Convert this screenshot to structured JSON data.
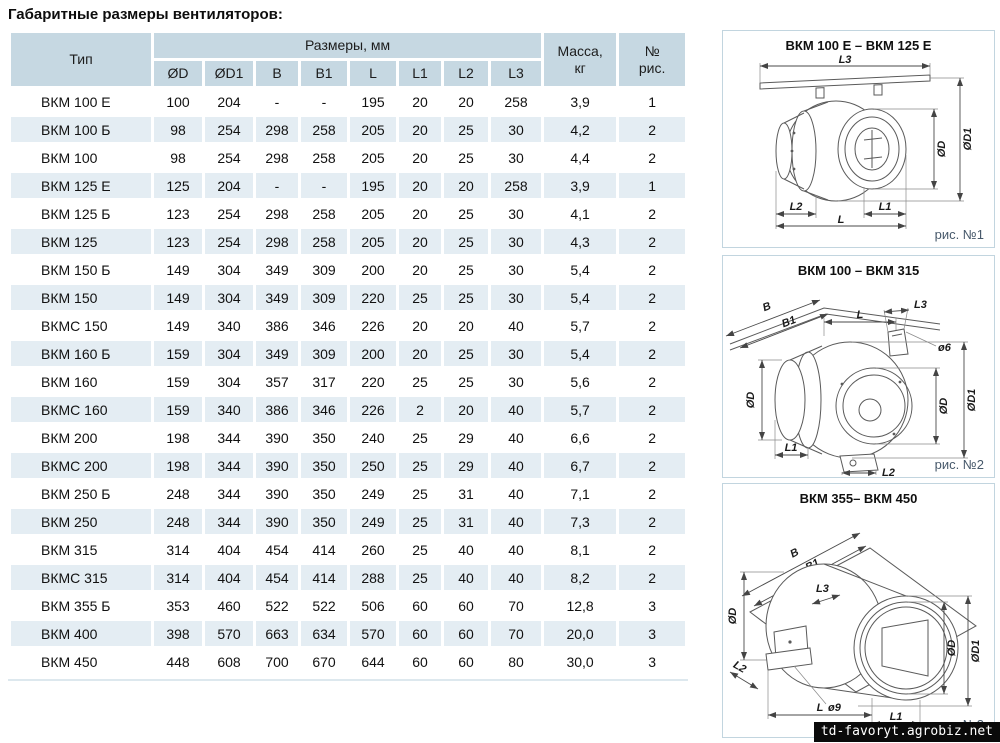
{
  "page": {
    "title": "Габаритные размеры вентиляторов:"
  },
  "table": {
    "col_type": "Тип",
    "col_dims_group": "Размеры, мм",
    "col_mass": "Масса,\nкг",
    "col_fig": "№\nрис.",
    "dim_headers": [
      "ØD",
      "ØD1",
      "B",
      "B1",
      "L",
      "L1",
      "L2",
      "L3"
    ],
    "rows": [
      {
        "type": "ВКМ 100 Е",
        "values": [
          "100",
          "204",
          "-",
          "-",
          "195",
          "20",
          "20",
          "258"
        ],
        "mass": "3,9",
        "fig": "1"
      },
      {
        "type": "ВКМ 100 Б",
        "values": [
          "98",
          "254",
          "298",
          "258",
          "205",
          "20",
          "25",
          "30"
        ],
        "mass": "4,2",
        "fig": "2"
      },
      {
        "type": "ВКМ 100",
        "values": [
          "98",
          "254",
          "298",
          "258",
          "205",
          "20",
          "25",
          "30"
        ],
        "mass": "4,4",
        "fig": "2"
      },
      {
        "type": "ВКМ 125 Е",
        "values": [
          "125",
          "204",
          "-",
          "-",
          "195",
          "20",
          "20",
          "258"
        ],
        "mass": "3,9",
        "fig": "1"
      },
      {
        "type": "ВКМ 125 Б",
        "values": [
          "123",
          "254",
          "298",
          "258",
          "205",
          "20",
          "25",
          "30"
        ],
        "mass": "4,1",
        "fig": "2"
      },
      {
        "type": "ВКМ 125",
        "values": [
          "123",
          "254",
          "298",
          "258",
          "205",
          "20",
          "25",
          "30"
        ],
        "mass": "4,3",
        "fig": "2"
      },
      {
        "type": "ВКМ 150 Б",
        "values": [
          "149",
          "304",
          "349",
          "309",
          "200",
          "20",
          "25",
          "30"
        ],
        "mass": "5,4",
        "fig": "2"
      },
      {
        "type": "ВКМ 150",
        "values": [
          "149",
          "304",
          "349",
          "309",
          "220",
          "25",
          "25",
          "30"
        ],
        "mass": "5,4",
        "fig": "2"
      },
      {
        "type": "ВКМС 150",
        "values": [
          "149",
          "340",
          "386",
          "346",
          "226",
          "20",
          "20",
          "40"
        ],
        "mass": "5,7",
        "fig": "2"
      },
      {
        "type": "ВКМ 160 Б",
        "values": [
          "159",
          "304",
          "349",
          "309",
          "200",
          "20",
          "25",
          "30"
        ],
        "mass": "5,4",
        "fig": "2"
      },
      {
        "type": "ВКМ 160",
        "values": [
          "159",
          "304",
          "357",
          "317",
          "220",
          "25",
          "25",
          "30"
        ],
        "mass": "5,6",
        "fig": "2"
      },
      {
        "type": "ВКМС 160",
        "values": [
          "159",
          "340",
          "386",
          "346",
          "226",
          "2",
          "20",
          "40"
        ],
        "mass": "5,7",
        "fig": "2"
      },
      {
        "type": "ВКМ 200",
        "values": [
          "198",
          "344",
          "390",
          "350",
          "240",
          "25",
          "29",
          "40"
        ],
        "mass": "6,6",
        "fig": "2"
      },
      {
        "type": "ВКМС 200",
        "values": [
          "198",
          "344",
          "390",
          "350",
          "250",
          "25",
          "29",
          "40"
        ],
        "mass": "6,7",
        "fig": "2"
      },
      {
        "type": "ВКМ 250 Б",
        "values": [
          "248",
          "344",
          "390",
          "350",
          "249",
          "25",
          "31",
          "40"
        ],
        "mass": "7,1",
        "fig": "2"
      },
      {
        "type": "ВКМ 250",
        "values": [
          "248",
          "344",
          "390",
          "350",
          "249",
          "25",
          "31",
          "40"
        ],
        "mass": "7,3",
        "fig": "2"
      },
      {
        "type": "ВКМ 315",
        "values": [
          "314",
          "404",
          "454",
          "414",
          "260",
          "25",
          "40",
          "40"
        ],
        "mass": "8,1",
        "fig": "2"
      },
      {
        "type": "ВКМС 315",
        "values": [
          "314",
          "404",
          "454",
          "414",
          "288",
          "25",
          "40",
          "40"
        ],
        "mass": "8,2",
        "fig": "2"
      },
      {
        "type": "ВКМ 355 Б",
        "values": [
          "353",
          "460",
          "522",
          "522",
          "506",
          "60",
          "60",
          "70"
        ],
        "mass": "12,8",
        "fig": "3"
      },
      {
        "type": "ВКМ 400",
        "values": [
          "398",
          "570",
          "663",
          "634",
          "570",
          "60",
          "60",
          "70"
        ],
        "mass": "20,0",
        "fig": "3"
      },
      {
        "type": "ВКМ 450",
        "values": [
          "448",
          "608",
          "700",
          "670",
          "644",
          "60",
          "60",
          "80"
        ],
        "mass": "30,0",
        "fig": "3"
      }
    ]
  },
  "diagrams": [
    {
      "title": "ВКМ 100 Е – ВКМ 125 Е",
      "caption": "рис. №1",
      "labels": {
        "l3": "L3",
        "d": "ØD",
        "d1": "ØD1",
        "l2": "L2",
        "l1": "L1",
        "l": "L"
      }
    },
    {
      "title": "ВКМ 100 – ВКМ 315",
      "caption": "рис. №2",
      "labels": {
        "b": "B",
        "b1": "B1",
        "l": "L",
        "l3": "L3",
        "hole": "ø6",
        "d_left": "ØD",
        "d_right": "ØD",
        "d1": "ØD1",
        "l1": "L1",
        "l2": "L2"
      }
    },
    {
      "title": "ВКМ 355– ВКМ 450",
      "caption": "рис. №3",
      "labels": {
        "b": "B",
        "b1": "B1",
        "d_left": "ØD",
        "l3": "L3",
        "l2": "L2",
        "hole": "ø9",
        "l": "L",
        "l1": "L1",
        "d_right": "ØD",
        "d1": "ØD1"
      }
    }
  ],
  "watermark": {
    "text": "td-favoryt.agrobiz.net"
  },
  "colors": {
    "header_bg": "#c6d8e2",
    "stripe_bg": "#e4edf3",
    "box_border": "#c2d5df",
    "caption_text": "#47596b",
    "watermark_bg": "#0a0a0a"
  }
}
